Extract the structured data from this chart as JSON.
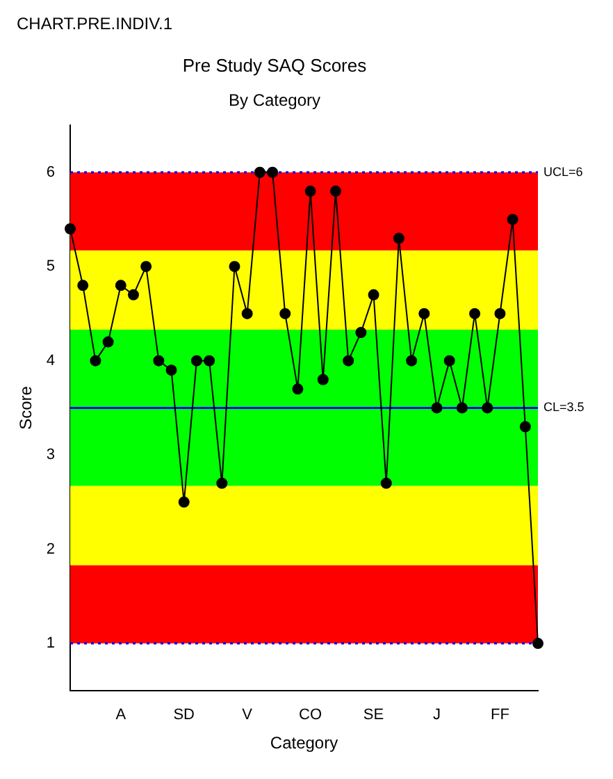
{
  "chart_data": {
    "type": "line",
    "title": "Pre Study SAQ Scores",
    "subtitle": "By Category",
    "xlabel": "Category",
    "ylabel": "Score",
    "annotations": [
      "CHART.PRE.INDIV.1"
    ],
    "categories": [
      null,
      null,
      null,
      null,
      "A",
      null,
      null,
      null,
      null,
      "SD",
      null,
      null,
      null,
      null,
      "V",
      null,
      null,
      null,
      null,
      "CO",
      null,
      null,
      null,
      null,
      "SE",
      null,
      null,
      null,
      null,
      "J",
      null,
      null,
      null,
      null,
      "FF",
      null,
      null,
      null
    ],
    "series": [
      {
        "color": "#000000",
        "values": [
          5.4,
          4.8,
          4.0,
          4.2,
          4.8,
          4.7,
          5.0,
          4.0,
          3.9,
          2.5,
          4.0,
          4.0,
          2.7,
          5.0,
          4.5,
          6.0,
          6.0,
          4.5,
          3.7,
          5.8,
          3.8,
          5.8,
          4.0,
          4.3,
          4.7,
          2.7,
          5.3,
          4.0,
          4.5,
          3.5,
          4.0,
          3.5,
          4.5,
          3.5,
          4.5,
          5.5,
          3.3,
          1.0
        ]
      }
    ],
    "ylim": [
      0.5,
      6.5
    ],
    "yticks": [
      1,
      2,
      3,
      4,
      5,
      6
    ],
    "grid": false,
    "legend": false,
    "marker": "circle",
    "line_style": "solid",
    "bands": [
      {
        "axis": "y",
        "from": 5.17,
        "to": 6,
        "color": "#ff0000"
      },
      {
        "axis": "y",
        "from": 4.33,
        "to": 5.17,
        "color": "#ffff00"
      },
      {
        "axis": "y",
        "from": 2.67,
        "to": 4.33,
        "color": "#00ff00"
      },
      {
        "axis": "y",
        "from": 1.83,
        "to": 2.67,
        "color": "#ffff00"
      },
      {
        "axis": "y",
        "from": 1,
        "to": 1.83,
        "color": "#ff0000"
      }
    ],
    "ref_lines": [
      {
        "axis": "y",
        "value": 6,
        "label": "UCL=6",
        "color": "#0000ff",
        "line_style": "dotted"
      },
      {
        "axis": "y",
        "value": 3.5,
        "label": "CL=3.5",
        "color": "#0000ff",
        "line_style": "solid"
      },
      {
        "axis": "y",
        "value": 1,
        "color": "#0000ff",
        "line_style": "dotted"
      }
    ]
  }
}
